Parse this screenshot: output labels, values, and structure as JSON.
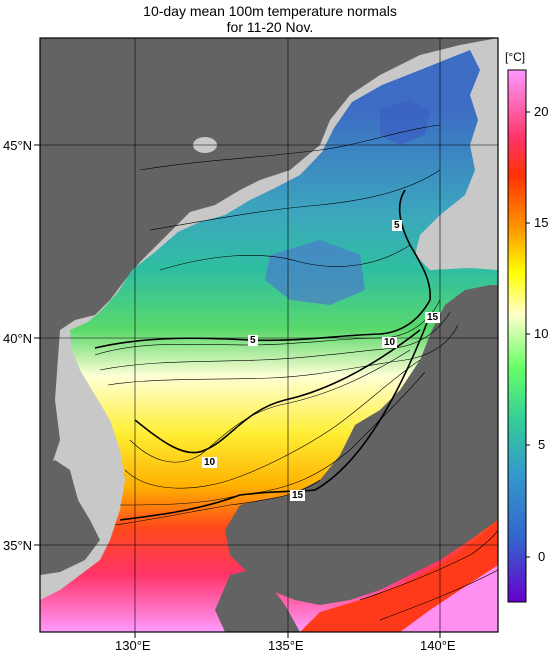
{
  "title_line1": "10-day mean 100m temperature normals",
  "title_line2": "for 11-20 Nov.",
  "map": {
    "lat_labels": [
      "45°N",
      "40°N",
      "35°N"
    ],
    "lon_labels": [
      "130°E",
      "135°E",
      "140°E"
    ],
    "contour_labels": [
      "5",
      "5",
      "10",
      "10",
      "15",
      "15"
    ],
    "land_color": "#636363",
    "border_color": "#ffffff"
  },
  "colorbar": {
    "unit": "[°C]",
    "ticks": [
      "20",
      "15",
      "10",
      "5",
      "0"
    ],
    "colors": [
      "#ff99ff",
      "#ff3366",
      "#ff3300",
      "#ff9900",
      "#ffcc00",
      "#ffff00",
      "#ffffcc",
      "#66ff66",
      "#33cc99",
      "#3399cc",
      "#3366cc",
      "#3333cc",
      "#6600cc"
    ]
  }
}
